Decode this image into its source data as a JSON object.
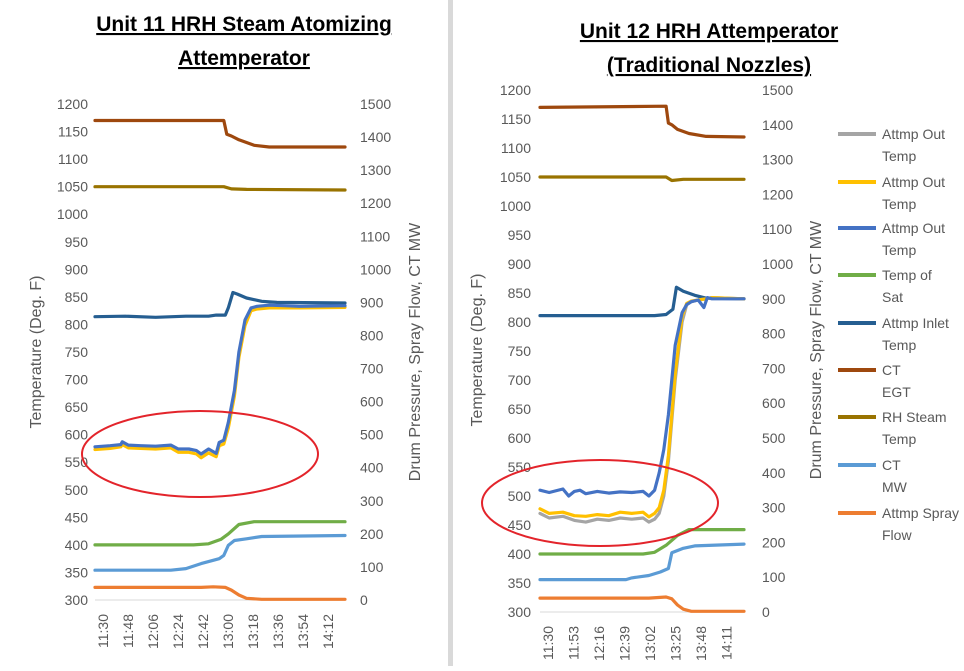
{
  "legend": [
    {
      "name": "Attmp Out Temp",
      "color": "#a5a5a5"
    },
    {
      "name": "Attmp Out Temp",
      "color": "#ffc000"
    },
    {
      "name": "Attmp Out Temp",
      "color": "#4472c4"
    },
    {
      "name": "Temp of Sat",
      "color": "#70ad47"
    },
    {
      "name": "Attmp Inlet Temp",
      "color": "#255e91"
    },
    {
      "name": "CT EGT",
      "color": "#9e480e"
    },
    {
      "name": "RH Steam Temp",
      "color": "#997300"
    },
    {
      "name": "CT MW",
      "color": "#5b9bd5"
    },
    {
      "name": "Attmp Spray Flow",
      "color": "#ed7d31"
    }
  ],
  "chart_data": [
    {
      "type": "line",
      "title": [
        "Unit 11 HRH Steam Atomizing",
        "Attemperator"
      ],
      "ylabel": "Temperature (Deg. F)",
      "y2label": "Drum Pressure, Spray Flow, CT MW",
      "ylim": [
        300,
        1200
      ],
      "y2lim": [
        0,
        1500
      ],
      "yticks": [
        "1200",
        "1150",
        "1100",
        "1050",
        "1000",
        "950",
        "900",
        "850",
        "800",
        "750",
        "700",
        "650",
        "600",
        "550",
        "500",
        "450",
        "400",
        "350",
        "300"
      ],
      "y2ticks": [
        "1500",
        "1400",
        "1300",
        "1200",
        "1100",
        "1000",
        "900",
        "800",
        "700",
        "600",
        "500",
        "400",
        "300",
        "200",
        "100",
        "0"
      ],
      "xticks": [
        "11:30",
        "11:48",
        "12:06",
        "12:24",
        "12:42",
        "13:00",
        "13:18",
        "13:36",
        "13:54",
        "14:12"
      ],
      "xlim_min": [
        0,
        165
      ],
      "series": [
        {
          "name": "CT EGT",
          "color": "#9e480e",
          "axis": "left",
          "t": [
            0,
            85,
            87,
            90,
            95,
            105,
            115,
            165
          ],
          "y": [
            1170,
            1170,
            1145,
            1142,
            1135,
            1125,
            1122,
            1122
          ]
        },
        {
          "name": "RH Steam Temp",
          "color": "#997300",
          "axis": "left",
          "t": [
            0,
            85,
            90,
            100,
            165
          ],
          "y": [
            1050,
            1050,
            1046,
            1045,
            1044
          ]
        },
        {
          "name": "Attmp Inlet Temp",
          "color": "#255e91",
          "axis": "left",
          "t": [
            0,
            20,
            40,
            60,
            75,
            80,
            86,
            88,
            91,
            94,
            100,
            110,
            120,
            165
          ],
          "y": [
            814,
            815,
            813,
            815,
            815,
            817,
            817,
            830,
            858,
            855,
            848,
            842,
            840,
            839
          ]
        },
        {
          "name": "Attmp Out Temp",
          "color": "#ffc000",
          "axis": "left",
          "t": [
            0,
            10,
            17,
            18,
            22,
            30,
            40,
            50,
            55,
            62,
            67,
            70,
            75,
            80,
            82,
            85,
            88,
            92,
            95,
            99,
            103,
            107,
            115,
            125,
            135,
            165
          ],
          "y": [
            573,
            575,
            578,
            582,
            576,
            575,
            574,
            576,
            568,
            568,
            565,
            558,
            567,
            560,
            580,
            583,
            612,
            670,
            740,
            798,
            825,
            828,
            830,
            830,
            830,
            831
          ]
        },
        {
          "name": "Attmp Out Temp",
          "color": "#4472c4",
          "axis": "left",
          "t": [
            0,
            10,
            17,
            18,
            22,
            30,
            40,
            50,
            55,
            62,
            67,
            70,
            75,
            80,
            82,
            85,
            88,
            92,
            95,
            99,
            103,
            107,
            115,
            125,
            135,
            165
          ],
          "y": [
            578,
            580,
            582,
            587,
            581,
            580,
            579,
            581,
            574,
            574,
            571,
            565,
            574,
            566,
            586,
            590,
            622,
            680,
            750,
            808,
            830,
            833,
            835,
            834,
            833,
            834
          ]
        },
        {
          "name": "Temp of Sat",
          "color": "#70ad47",
          "axis": "left",
          "t": [
            0,
            65,
            75,
            83,
            88,
            95,
            105,
            165
          ],
          "y": [
            400,
            400,
            402,
            410,
            420,
            437,
            442,
            442
          ]
        },
        {
          "name": "CT MW",
          "color": "#5b9bd5",
          "axis": "right",
          "t": [
            0,
            50,
            60,
            70,
            78,
            82,
            85,
            88,
            92,
            100,
            110,
            165
          ],
          "y": [
            90,
            90,
            95,
            110,
            120,
            125,
            135,
            165,
            180,
            185,
            192,
            195
          ]
        },
        {
          "name": "Attmp Spray Flow",
          "color": "#ed7d31",
          "axis": "right",
          "t": [
            0,
            70,
            78,
            86,
            90,
            95,
            100,
            110,
            165
          ],
          "y": [
            38,
            38,
            40,
            38,
            30,
            15,
            5,
            2,
            2
          ]
        }
      ]
    },
    {
      "type": "line",
      "title": [
        "Unit 12 HRH Attemperator",
        "(Traditional Nozzles)"
      ],
      "ylabel": "Temperature (Deg. F)",
      "y2label": "Drum Pressure, Spray Flow, CT MW",
      "ylim": [
        300,
        1200
      ],
      "y2lim": [
        0,
        1500
      ],
      "yticks": [
        "1200",
        "1150",
        "1100",
        "1050",
        "1000",
        "950",
        "900",
        "850",
        "800",
        "750",
        "700",
        "650",
        "600",
        "550",
        "500",
        "450",
        "400",
        "350",
        "300"
      ],
      "y2ticks": [
        "1500",
        "1400",
        "1300",
        "1200",
        "1100",
        "1000",
        "900",
        "800",
        "700",
        "600",
        "500",
        "400",
        "300",
        "200",
        "100",
        "0"
      ],
      "xticks": [
        "11:30",
        "11:53",
        "12:16",
        "12:39",
        "13:02",
        "13:25",
        "13:48",
        "14:11"
      ],
      "xlim_min": [
        0,
        178
      ],
      "series": [
        {
          "name": "CT EGT",
          "color": "#9e480e",
          "axis": "left",
          "t": [
            0,
            110,
            112,
            115,
            120,
            130,
            145,
            178
          ],
          "y": [
            1170,
            1172,
            1143,
            1140,
            1132,
            1125,
            1120,
            1119
          ]
        },
        {
          "name": "RH Steam Temp",
          "color": "#997300",
          "axis": "left",
          "t": [
            0,
            110,
            115,
            125,
            178
          ],
          "y": [
            1050,
            1050,
            1044,
            1046,
            1046
          ]
        },
        {
          "name": "Attmp Inlet Temp",
          "color": "#255e91",
          "axis": "left",
          "t": [
            0,
            50,
            100,
            110,
            116,
            119,
            125,
            135,
            145,
            178
          ],
          "y": [
            811,
            811,
            811,
            813,
            822,
            860,
            853,
            846,
            841,
            840
          ]
        },
        {
          "name": "Attmp Out Temp",
          "color": "#a5a5a5",
          "axis": "left",
          "t": [
            0,
            8,
            20,
            30,
            40,
            50,
            60,
            70,
            80,
            90,
            95,
            100,
            104,
            108,
            112,
            118,
            124,
            128,
            132,
            138,
            145,
            150,
            178
          ],
          "y": [
            470,
            462,
            465,
            458,
            455,
            460,
            458,
            462,
            460,
            462,
            455,
            460,
            470,
            500,
            560,
            700,
            800,
            830,
            835,
            838,
            840,
            842,
            840
          ]
        },
        {
          "name": "Attmp Out Temp",
          "color": "#ffc000",
          "axis": "left",
          "t": [
            0,
            8,
            20,
            30,
            40,
            50,
            60,
            70,
            80,
            90,
            95,
            100,
            104,
            108,
            112,
            118,
            124,
            128,
            132,
            138,
            145,
            150,
            178
          ],
          "y": [
            478,
            470,
            472,
            466,
            465,
            468,
            466,
            472,
            470,
            472,
            464,
            470,
            480,
            510,
            570,
            710,
            810,
            832,
            836,
            838,
            840,
            842,
            840
          ]
        },
        {
          "name": "Attmp Out Temp",
          "color": "#4472c4",
          "axis": "left",
          "t": [
            0,
            8,
            20,
            25,
            30,
            35,
            40,
            50,
            60,
            70,
            80,
            90,
            95,
            100,
            104,
            108,
            112,
            118,
            124,
            128,
            132,
            138,
            143,
            146,
            150,
            178
          ],
          "y": [
            510,
            506,
            512,
            500,
            508,
            510,
            504,
            508,
            505,
            507,
            506,
            508,
            500,
            510,
            540,
            580,
            640,
            760,
            816,
            830,
            835,
            838,
            825,
            842,
            840,
            840
          ]
        },
        {
          "name": "Temp of Sat",
          "color": "#70ad47",
          "axis": "left",
          "t": [
            0,
            90,
            100,
            110,
            120,
            130,
            178
          ],
          "y": [
            400,
            400,
            403,
            415,
            432,
            442,
            442
          ]
        },
        {
          "name": "CT MW",
          "color": "#5b9bd5",
          "axis": "right",
          "t": [
            0,
            75,
            80,
            95,
            105,
            112,
            115,
            125,
            135,
            178
          ],
          "y": [
            93,
            93,
            98,
            105,
            115,
            125,
            170,
            183,
            190,
            195
          ]
        },
        {
          "name": "Attmp Spray Flow",
          "color": "#ed7d31",
          "axis": "right",
          "t": [
            0,
            95,
            105,
            110,
            115,
            120,
            125,
            132,
            178
          ],
          "y": [
            40,
            40,
            42,
            43,
            38,
            20,
            8,
            2,
            2
          ]
        }
      ]
    }
  ]
}
